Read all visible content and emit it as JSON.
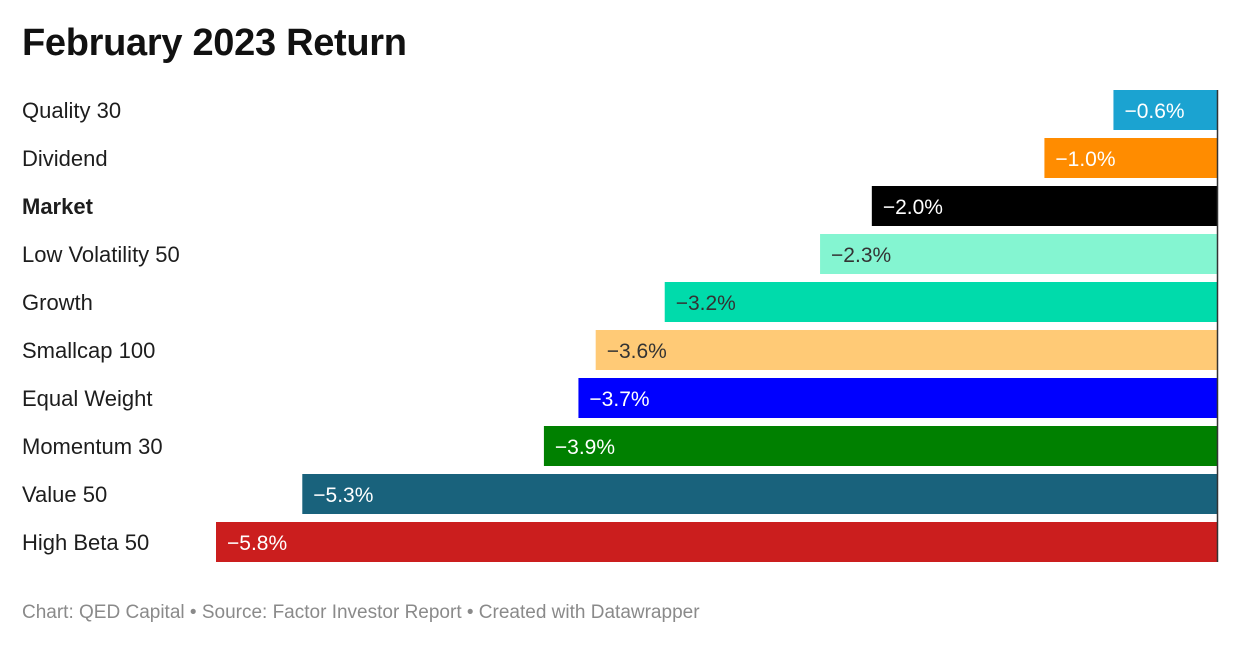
{
  "title": "February 2023 Return",
  "footer": "Chart: QED Capital • Source: Factor Investor Report • Created with Datawrapper",
  "chart_data": {
    "type": "bar",
    "orientation": "horizontal",
    "title": "February 2023 Return",
    "xlabel": "",
    "ylabel": "",
    "xlim": [
      -5.8,
      0
    ],
    "grid": false,
    "categories": [
      "Quality 30",
      "Dividend",
      "Market",
      "Low Volatility 50",
      "Growth",
      "Smallcap 100",
      "Equal Weight",
      "Momentum 30",
      "Value 50",
      "High Beta 50"
    ],
    "values": [
      -0.6,
      -1.0,
      -2.0,
      -2.3,
      -3.2,
      -3.6,
      -3.7,
      -3.9,
      -5.3,
      -5.8
    ],
    "value_labels": [
      "−0.6%",
      "−1.0%",
      "−2.0%",
      "−2.3%",
      "−3.2%",
      "−3.6%",
      "−3.7%",
      "−3.9%",
      "−5.3%",
      "−5.8%"
    ],
    "colors": [
      "#1ba3d1",
      "#ff8c00",
      "#000000",
      "#84f5d1",
      "#00dbab",
      "#ffca76",
      "#0000ff",
      "#008000",
      "#19627c",
      "#cb1e1e"
    ],
    "label_colors": [
      "#ffffff",
      "#ffffff",
      "#ffffff",
      "#333333",
      "#333333",
      "#333333",
      "#ffffff",
      "#ffffff",
      "#ffffff",
      "#ffffff"
    ],
    "bold_categories": [
      "Market"
    ]
  }
}
